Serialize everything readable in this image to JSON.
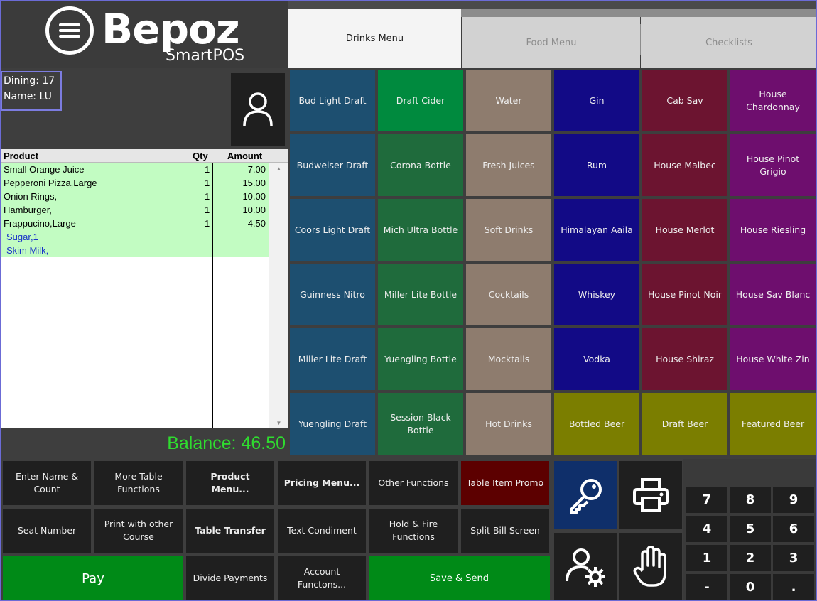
{
  "logo": {
    "brand": "Bepoz",
    "sub": "SmartPOS"
  },
  "info": {
    "dining": "Dining: 17",
    "name": "Name: LU"
  },
  "order": {
    "headers": {
      "product": "Product",
      "qty": "Qty",
      "amount": "Amount"
    },
    "rows": [
      {
        "product": "Small Orange Juice",
        "qty": "1",
        "amount": "7.00"
      },
      {
        "product": "Pepperoni Pizza,Large",
        "qty": "1",
        "amount": "15.00"
      },
      {
        "product": "Onion Rings,",
        "qty": "1",
        "amount": "10.00"
      },
      {
        "product": "Hamburger,",
        "qty": "1",
        "amount": "10.00"
      },
      {
        "product": "Frappucino,Large",
        "qty": "1",
        "amount": "4.50"
      },
      {
        "product": "Sugar,1",
        "qty": "",
        "amount": ""
      },
      {
        "product": "Skim Milk,",
        "qty": "",
        "amount": ""
      }
    ]
  },
  "balance": "Balance: 46.50",
  "tabs": {
    "drinks": "Drinks Menu",
    "food": "Food Menu",
    "checklists": "Checklists"
  },
  "menu": {
    "col1": [
      "Bud Light Draft",
      "Budweiser Draft",
      "Coors Light Draft",
      "Guinness Nitro",
      "Miller Lite Draft",
      "Yuengling Draft"
    ],
    "col2": [
      "Draft Cider",
      "Corona Bottle",
      "Mich Ultra Bottle",
      "Miller Lite Bottle",
      "Yuengling Bottle",
      "Session Black Bottle"
    ],
    "col3": [
      "Water",
      "Fresh Juices",
      "Soft Drinks",
      "Cocktails",
      "Mocktails",
      "Hot Drinks"
    ],
    "col4": [
      "Gin",
      "Rum",
      "Himalayan Aaila",
      "Whiskey",
      "Vodka",
      "Bottled Beer"
    ],
    "col5": [
      "Cab Sav",
      "House Malbec",
      "House Merlot",
      "House Pinot Noir",
      "House Shiraz",
      "Draft Beer"
    ],
    "col6": [
      "House Chardonnay",
      "House Pinot Grigio",
      "House Riesling",
      "House Sav Blanc",
      "House White Zin",
      "Featured Beer"
    ]
  },
  "functions": {
    "enter_name": "Enter Name & Count",
    "more_table": "More Table Functions",
    "product_menu": "Product Menu...",
    "pricing_menu": "Pricing Menu...",
    "other_functions": "Other Functions",
    "table_item_promo": "Table Item Promo",
    "seat_number": "Seat Number",
    "print_other_course": "Print with other Course",
    "table_transfer": "Table Transfer",
    "text_condiment": "Text Condiment",
    "hold_fire": "Hold & Fire Functions",
    "split_bill": "Split Bill Screen",
    "pay": "Pay",
    "divide_payments": "Divide Payments",
    "account_functions": "Account Functons...",
    "save_send": "Save & Send"
  },
  "icons": {
    "avatar": "user-icon",
    "key": "key-icon",
    "print": "printer-icon",
    "user_settings": "user-gear-icon",
    "hand": "hand-icon"
  },
  "numpad": [
    "7",
    "8",
    "9",
    "4",
    "5",
    "6",
    "1",
    "2",
    "3",
    "-",
    "0",
    "."
  ]
}
